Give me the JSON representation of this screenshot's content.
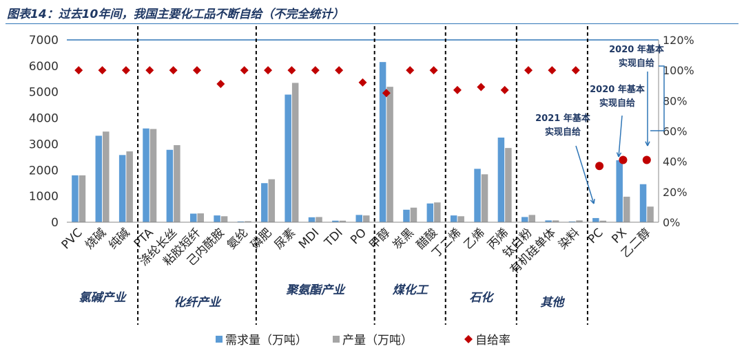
{
  "figure_title": "图表14：过去10年间，我国主要化工品不断自给（不完全统计）",
  "colors": {
    "demand": "#5b9bd5",
    "production": "#a5a5a5",
    "self_rate": "#c00000",
    "accent": "#1f3864",
    "ref_line": "#2e75b6"
  },
  "chart_data": {
    "type": "bar",
    "title": "",
    "categories": [
      "PVC",
      "烧碱",
      "纯碱",
      "PTA",
      "涤纶长丝",
      "粘胶短纤",
      "己内酰胺",
      "氨纶",
      "磷肥",
      "尿素",
      "MDI",
      "TDI",
      "PO",
      "甲醇",
      "炭黑",
      "醋酸",
      "丁二烯",
      "乙烯",
      "丙烯",
      "钛白粉",
      "有机硅单体",
      "染料",
      "PC",
      "PX",
      "乙二醇"
    ],
    "series": [
      {
        "name": "需求量（万吨）",
        "axis": "left",
        "type": "bar",
        "values": [
          1800,
          3320,
          2580,
          3600,
          2780,
          330,
          260,
          30,
          1500,
          4900,
          190,
          60,
          280,
          6150,
          480,
          720,
          260,
          2050,
          3250,
          200,
          70,
          30,
          160,
          2380,
          1460
        ]
      },
      {
        "name": "产量（万吨）",
        "axis": "left",
        "type": "bar",
        "values": [
          1800,
          3480,
          2720,
          3580,
          2960,
          340,
          230,
          40,
          1650,
          5350,
          200,
          60,
          260,
          5200,
          560,
          760,
          230,
          1840,
          2850,
          280,
          70,
          70,
          60,
          980,
          600
        ]
      },
      {
        "name": "自给率",
        "axis": "right",
        "type": "scatter",
        "values": [
          100,
          100,
          100,
          100,
          100,
          100,
          91,
          100,
          100,
          100,
          100,
          100,
          92,
          85,
          100,
          100,
          87,
          89,
          87,
          100,
          100,
          100,
          37,
          41,
          41
        ]
      }
    ],
    "ylim": [
      0,
      7000
    ],
    "yticks": [
      "0",
      "1000",
      "2000",
      "3000",
      "4000",
      "5000",
      "6000",
      "7000"
    ],
    "y2lim": [
      0,
      120
    ],
    "y2ticks": [
      "0%",
      "20%",
      "40%",
      "60%",
      "80%",
      "100%",
      "120%"
    ],
    "reference_line_y2": 120,
    "groups": [
      {
        "label": "氯碱产业",
        "start": 0,
        "end": 2
      },
      {
        "label": "化纤产业",
        "start": 3,
        "end": 7
      },
      {
        "label": "聚氨酯产业",
        "start": 8,
        "end": 12
      },
      {
        "label": "煤化工",
        "start": 13,
        "end": 15
      },
      {
        "label": "石化",
        "start": 16,
        "end": 18
      },
      {
        "label": "其他",
        "start": 19,
        "end": 21
      }
    ],
    "annotations": [
      {
        "line1": "2021 年基本",
        "line2": "实现自给",
        "target": "PC"
      },
      {
        "line1": "2020 年基本",
        "line2": "实现自给",
        "target": "PX"
      },
      {
        "line1": "2020 年基本",
        "line2": "实现自给",
        "target": "乙二醇"
      }
    ],
    "legend": {
      "position": "bottom",
      "items": [
        "需求量（万吨）",
        "产量（万吨）",
        "自给率"
      ]
    }
  }
}
